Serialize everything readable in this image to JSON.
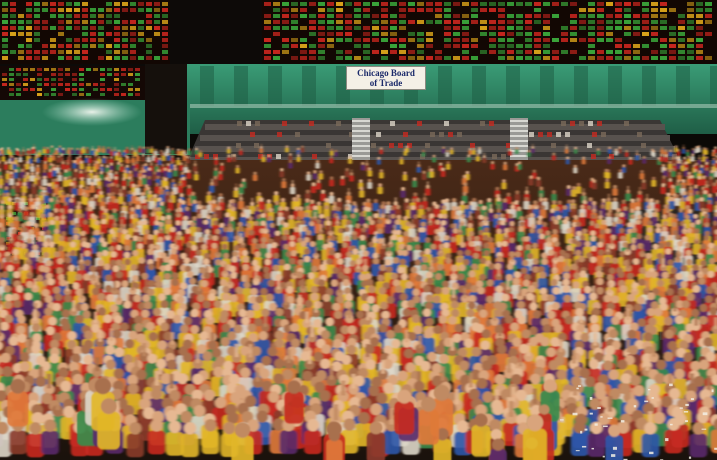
{
  "sign": {
    "line1": "Chicago Board",
    "line2": "of Trade"
  },
  "colors": {
    "wall_green": "#2f8f6a",
    "wall_green_dark": "#1f5e46",
    "board_background": "#120703",
    "board_red": "#c8261e",
    "board_green": "#3aa53a",
    "board_amber": "#d9a21a",
    "trader_jacket_red": "#c62a20",
    "trader_jacket_yellow": "#e2b628",
    "trader_jacket_blue": "#2f57a8",
    "trader_jacket_white": "#ddd6c8",
    "floor_dark": "#1a120c"
  }
}
